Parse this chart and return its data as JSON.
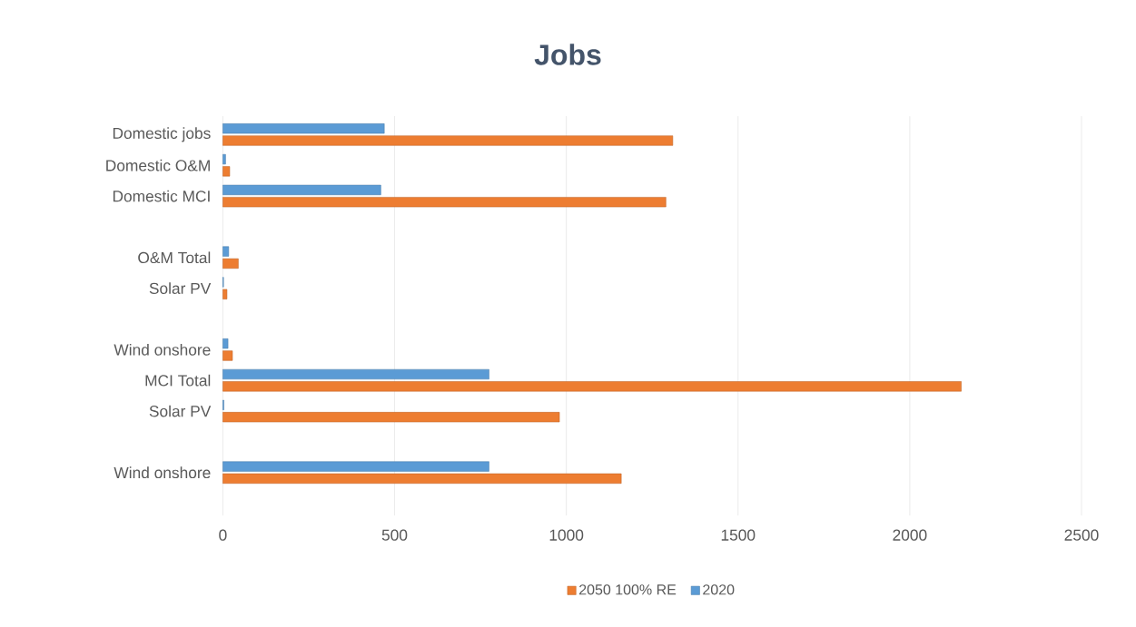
{
  "chart_data": {
    "type": "bar",
    "orientation": "horizontal",
    "title": "Jobs",
    "categories": [
      "Domestic jobs",
      "Domestic O&M",
      "Domestic MCI",
      null,
      "O&M Total",
      "Solar PV",
      null,
      "Wind onshore",
      "MCI Total",
      "Solar PV",
      null,
      "Wind onshore"
    ],
    "series": [
      {
        "name": "2050 100% RE",
        "color": "#ed7d31",
        "values": [
          1310,
          20,
          1290,
          null,
          45,
          12,
          null,
          28,
          2150,
          980,
          null,
          1160
        ]
      },
      {
        "name": "2020",
        "color": "#5b9bd5",
        "values": [
          470,
          8,
          460,
          null,
          17,
          2,
          null,
          15,
          775,
          3,
          null,
          775
        ]
      }
    ],
    "xlim": [
      0,
      2500
    ],
    "xticks": [
      0,
      500,
      1000,
      1500,
      2000,
      2500
    ],
    "grid": "x",
    "legend": "bottom"
  }
}
